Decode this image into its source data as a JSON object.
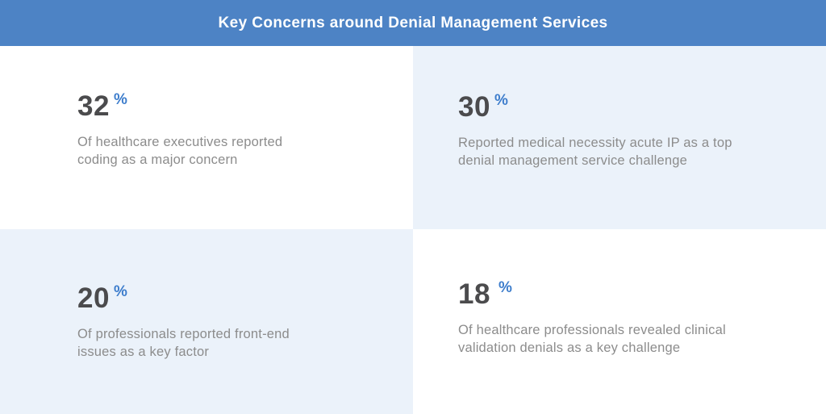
{
  "header": {
    "title": "Key Concerns around Denial Management Services"
  },
  "quadrants": [
    {
      "value": "32",
      "percent_sign": "%",
      "description": "Of healthcare executives reported\ncoding as a major concern"
    },
    {
      "value": "30",
      "percent_sign": "%",
      "description": "Reported medical necessity acute IP as a top\ndenial management service challenge"
    },
    {
      "value": "20",
      "percent_sign": "%",
      "description": "Of professionals reported front-end\nissues as a key factor"
    },
    {
      "value": "18",
      "percent_sign": "%",
      "description": "Of healthcare professionals revealed clinical\nvalidation denials as a key challenge"
    }
  ],
  "colors": {
    "header_bg": "#4d83c5",
    "tile_alt_bg": "#ebf2fa",
    "tile_plain_bg": "#ffffff",
    "number_color": "#4b4b4d",
    "percent_color": "#3d7dcc",
    "description_color": "#8c8c8c",
    "title_color": "#ffffff"
  },
  "chart_data": {
    "type": "table",
    "title": "Key Concerns around Denial Management Services",
    "categories": [
      "Coding as a major concern (healthcare executives)",
      "Medical necessity acute IP as a top denial management service challenge",
      "Front-end issues as a key factor (professionals)",
      "Clinical validation denials as a key challenge (healthcare professionals)"
    ],
    "values": [
      32,
      30,
      20,
      18
    ],
    "unit": "%",
    "legend_position": "none",
    "grid": false
  }
}
